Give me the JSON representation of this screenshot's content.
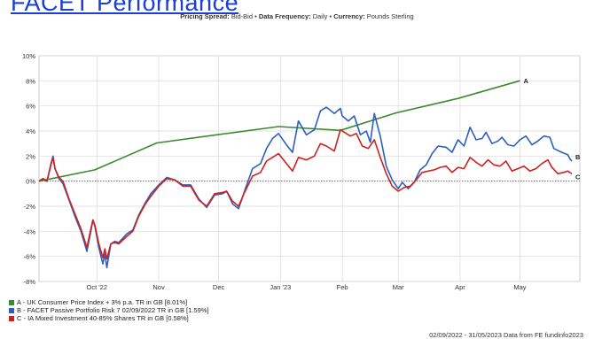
{
  "page": {
    "title": "FACET Performance",
    "footer": "02/09/2022 - 31/05/2023 Data from FE fundinfo2023"
  },
  "meta": {
    "pricing_spread_label": "Pricing Spread:",
    "pricing_spread_value": "Bid-Bid",
    "data_frequency_label": "Data Frequency:",
    "data_frequency_value": "Daily",
    "currency_label": "Currency:",
    "currency_value": "Pounds Sterling"
  },
  "chart_data": {
    "type": "line",
    "title": "FACET Performance",
    "xlabel": "",
    "ylabel": "",
    "ylim": [
      -8,
      10
    ],
    "xlim": [
      0,
      271
    ],
    "grid": true,
    "legend_position": "bottom-left",
    "yticks": [
      -8,
      -6,
      -4,
      -2,
      0,
      2,
      4,
      6,
      8,
      10
    ],
    "yticklabels": [
      "-8%",
      "-6%",
      "-4%",
      "-2%",
      "0%",
      "2%",
      "4%",
      "6%",
      "8%",
      "10%"
    ],
    "xticks": [
      {
        "label": "Oct '22",
        "x": 29
      },
      {
        "label": "Nov",
        "x": 60
      },
      {
        "label": "Dec",
        "x": 90
      },
      {
        "label": "Jan '23",
        "x": 121
      },
      {
        "label": "Feb",
        "x": 152
      },
      {
        "label": "Mar",
        "x": 180
      },
      {
        "label": "Apr",
        "x": 211
      },
      {
        "label": "May",
        "x": 241
      }
    ],
    "series": [
      {
        "name": "A - UK Consumer Price Index + 3% p.a. TR in GB [8.01%]",
        "label": "A",
        "color": "#3c8a2e",
        "points": [
          [
            0,
            0
          ],
          [
            28,
            0.9
          ],
          [
            59,
            3.05
          ],
          [
            89,
            3.7
          ],
          [
            120,
            4.35
          ],
          [
            151,
            4.05
          ],
          [
            179,
            5.45
          ],
          [
            210,
            6.6
          ],
          [
            241,
            8.01
          ]
        ]
      },
      {
        "name": "B - FACET Passive Portfolio Risk 7 02/09/2022 TR in GB [1.59%]",
        "label": "B",
        "color": "#2e5fc0",
        "points": [
          [
            0,
            0
          ],
          [
            2,
            0.2
          ],
          [
            4,
            0
          ],
          [
            6,
            1.4
          ],
          [
            7,
            2.0
          ],
          [
            8,
            1.0
          ],
          [
            10,
            0.2
          ],
          [
            12,
            -0.2
          ],
          [
            15,
            -1.5
          ],
          [
            18,
            -2.8
          ],
          [
            21,
            -4.0
          ],
          [
            24,
            -5.6
          ],
          [
            26,
            -4.0
          ],
          [
            27,
            -3.1
          ],
          [
            28,
            -3.6
          ],
          [
            30,
            -5.3
          ],
          [
            32,
            -6.6
          ],
          [
            33,
            -5.8
          ],
          [
            34,
            -6.9
          ],
          [
            36,
            -5.0
          ],
          [
            38,
            -4.8
          ],
          [
            40,
            -4.9
          ],
          [
            44,
            -4.2
          ],
          [
            47,
            -3.9
          ],
          [
            50,
            -2.7
          ],
          [
            53,
            -1.8
          ],
          [
            56,
            -1.0
          ],
          [
            60,
            -0.3
          ],
          [
            64,
            0.3
          ],
          [
            68,
            0.1
          ],
          [
            72,
            -0.3
          ],
          [
            76,
            -0.3
          ],
          [
            80,
            -1.4
          ],
          [
            84,
            -2.1
          ],
          [
            88,
            -1.1
          ],
          [
            92,
            -1.0
          ],
          [
            94,
            -0.8
          ],
          [
            97,
            -1.8
          ],
          [
            100,
            -2.2
          ],
          [
            103,
            -0.8
          ],
          [
            107,
            1.0
          ],
          [
            111,
            1.4
          ],
          [
            114,
            2.6
          ],
          [
            117,
            3.4
          ],
          [
            120,
            3.8
          ],
          [
            124,
            2.9
          ],
          [
            127,
            2.3
          ],
          [
            130,
            4.8
          ],
          [
            134,
            3.7
          ],
          [
            138,
            4.1
          ],
          [
            141,
            5.6
          ],
          [
            144,
            5.9
          ],
          [
            148,
            5.4
          ],
          [
            151,
            5.8
          ],
          [
            152,
            5.2
          ],
          [
            155,
            4.8
          ],
          [
            158,
            5.2
          ],
          [
            161,
            3.7
          ],
          [
            164,
            4.0
          ],
          [
            166,
            3.1
          ],
          [
            168,
            5.4
          ],
          [
            171,
            3.6
          ],
          [
            174,
            1.2
          ],
          [
            177,
            0.1
          ],
          [
            180,
            -0.6
          ],
          [
            182,
            -0.1
          ],
          [
            185,
            -0.6
          ],
          [
            188,
            -0.1
          ],
          [
            191,
            0.9
          ],
          [
            194,
            1.3
          ],
          [
            197,
            2.2
          ],
          [
            200,
            2.8
          ],
          [
            204,
            2.7
          ],
          [
            207,
            2.3
          ],
          [
            210,
            3.3
          ],
          [
            213,
            2.8
          ],
          [
            216,
            4.3
          ],
          [
            219,
            3.3
          ],
          [
            222,
            3.4
          ],
          [
            224,
            3.9
          ],
          [
            227,
            3.0
          ],
          [
            230,
            3.2
          ],
          [
            232,
            3.5
          ],
          [
            235,
            2.9
          ],
          [
            238,
            2.8
          ],
          [
            241,
            3.3
          ],
          [
            244,
            3.6
          ],
          [
            247,
            2.9
          ],
          [
            250,
            3.2
          ],
          [
            253,
            3.6
          ],
          [
            256,
            3.5
          ],
          [
            258,
            2.6
          ],
          [
            262,
            2.3
          ],
          [
            265,
            2.1
          ],
          [
            266,
            1.8
          ],
          [
            267,
            1.59
          ]
        ]
      },
      {
        "name": "C - IA Mixed Investment 40-85% Shares TR in GB [0.58%]",
        "label": "C",
        "color": "#d0201f",
        "points": [
          [
            0,
            0
          ],
          [
            2,
            0.2
          ],
          [
            4,
            0
          ],
          [
            6,
            1.3
          ],
          [
            7,
            1.9
          ],
          [
            8,
            1.0
          ],
          [
            10,
            0.3
          ],
          [
            12,
            0
          ],
          [
            15,
            -1.4
          ],
          [
            18,
            -2.6
          ],
          [
            21,
            -3.8
          ],
          [
            24,
            -5.3
          ],
          [
            26,
            -3.8
          ],
          [
            27,
            -3.1
          ],
          [
            28,
            -3.5
          ],
          [
            30,
            -5.0
          ],
          [
            32,
            -6.1
          ],
          [
            33,
            -5.4
          ],
          [
            34,
            -6.2
          ],
          [
            36,
            -5.0
          ],
          [
            38,
            -4.9
          ],
          [
            40,
            -5.0
          ],
          [
            44,
            -4.4
          ],
          [
            47,
            -4.0
          ],
          [
            50,
            -2.8
          ],
          [
            53,
            -1.9
          ],
          [
            56,
            -1.2
          ],
          [
            60,
            -0.4
          ],
          [
            64,
            0.2
          ],
          [
            68,
            0.1
          ],
          [
            72,
            -0.4
          ],
          [
            76,
            -0.4
          ],
          [
            80,
            -1.5
          ],
          [
            84,
            -2.0
          ],
          [
            88,
            -1.0
          ],
          [
            92,
            -0.9
          ],
          [
            94,
            -0.8
          ],
          [
            97,
            -1.6
          ],
          [
            100,
            -2.0
          ],
          [
            103,
            -0.9
          ],
          [
            107,
            0.4
          ],
          [
            111,
            0.7
          ],
          [
            114,
            1.6
          ],
          [
            117,
            1.9
          ],
          [
            120,
            2.2
          ],
          [
            124,
            1.4
          ],
          [
            127,
            0.8
          ],
          [
            130,
            1.9
          ],
          [
            134,
            1.7
          ],
          [
            138,
            2.0
          ],
          [
            141,
            3.0
          ],
          [
            144,
            2.8
          ],
          [
            148,
            2.4
          ],
          [
            151,
            4.1
          ],
          [
            153,
            3.9
          ],
          [
            156,
            3.6
          ],
          [
            159,
            3.8
          ],
          [
            162,
            2.8
          ],
          [
            165,
            2.6
          ],
          [
            168,
            3.3
          ],
          [
            171,
            1.9
          ],
          [
            174,
            0.6
          ],
          [
            177,
            -0.4
          ],
          [
            180,
            -0.8
          ],
          [
            183,
            -0.5
          ],
          [
            186,
            -0.4
          ],
          [
            189,
            0.1
          ],
          [
            192,
            0.7
          ],
          [
            195,
            0.8
          ],
          [
            198,
            0.9
          ],
          [
            201,
            1.1
          ],
          [
            204,
            1.2
          ],
          [
            207,
            0.7
          ],
          [
            210,
            1.1
          ],
          [
            213,
            1.0
          ],
          [
            216,
            1.9
          ],
          [
            219,
            1.5
          ],
          [
            222,
            1.2
          ],
          [
            225,
            1.7
          ],
          [
            228,
            1.3
          ],
          [
            231,
            1.2
          ],
          [
            234,
            1.6
          ],
          [
            237,
            0.8
          ],
          [
            240,
            1.0
          ],
          [
            243,
            1.2
          ],
          [
            246,
            0.8
          ],
          [
            249,
            1.0
          ],
          [
            252,
            1.4
          ],
          [
            255,
            1.7
          ],
          [
            257,
            1.1
          ],
          [
            260,
            0.6
          ],
          [
            263,
            0.7
          ],
          [
            265,
            0.8
          ],
          [
            267,
            0.58
          ]
        ]
      }
    ]
  }
}
